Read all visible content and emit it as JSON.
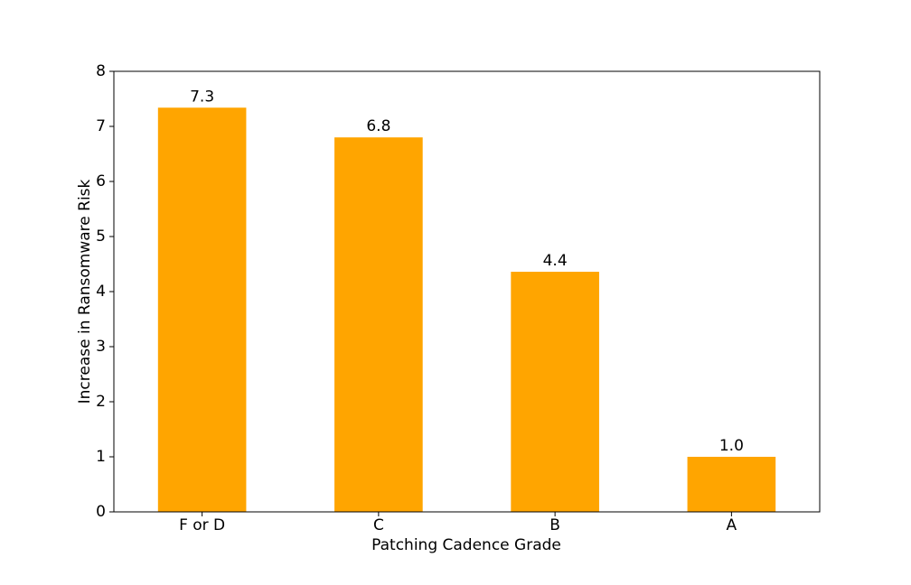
{
  "chart_data": {
    "type": "bar",
    "x_label": "Patching Cadence Grade",
    "y_label": "Increase in Ransomware Risk",
    "categories": [
      "F or D",
      "C",
      "B",
      "A"
    ],
    "values": [
      7.34,
      6.8,
      4.36,
      1.0
    ],
    "value_labels": [
      "7.3",
      "6.8",
      "4.4",
      "1.0"
    ],
    "color": "#ffa500",
    "ylim": [
      0,
      8
    ],
    "yticks": [
      0,
      1,
      2,
      3,
      4,
      5,
      6,
      7,
      8
    ],
    "grid": false
  }
}
